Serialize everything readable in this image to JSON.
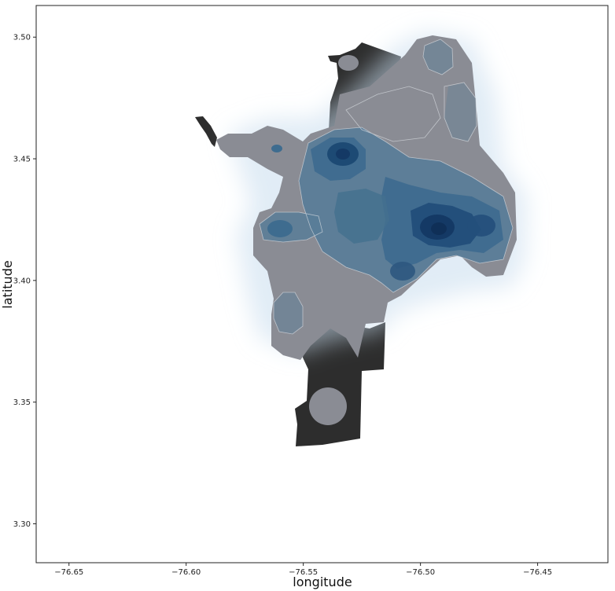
{
  "chart_data": {
    "type": "heatmap",
    "title": "",
    "xlabel": "longitude",
    "ylabel": "latitude",
    "xlim": [
      -76.664,
      -76.42
    ],
    "ylim": [
      3.284,
      3.513
    ],
    "xticks": [
      -76.65,
      -76.6,
      -76.55,
      -76.5,
      -76.45
    ],
    "xtick_labels": [
      "−76.65",
      "−76.60",
      "−76.55",
      "−76.50",
      "−76.45"
    ],
    "yticks": [
      3.3,
      3.35,
      3.4,
      3.45,
      3.5
    ],
    "ytick_labels": [
      "3.30",
      "3.35",
      "3.40",
      "3.45",
      "3.50"
    ],
    "grid": false,
    "legend": "none",
    "colors": {
      "city_fill": "#2d2d2d",
      "density_overlay": "#a7c5e3",
      "density_light": "#8a8c94",
      "density_mid": "#3e6c8f",
      "density_peak": "#143965"
    },
    "density_peaks": [
      {
        "lon": -76.492,
        "lat": 3.421,
        "level": 1.0
      },
      {
        "lon": -76.531,
        "lat": 3.451,
        "level": 0.85
      },
      {
        "lon": -76.557,
        "lat": 3.421,
        "level": 0.55
      },
      {
        "lon": -76.473,
        "lat": 3.422,
        "level": 0.5
      },
      {
        "lon": -76.509,
        "lat": 3.405,
        "level": 0.45
      },
      {
        "lon": -76.504,
        "lat": 3.436,
        "level": 0.4
      },
      {
        "lon": -76.531,
        "lat": 3.433,
        "level": 0.35
      },
      {
        "lon": -76.554,
        "lat": 3.385,
        "level": 0.3
      },
      {
        "lon": -76.494,
        "lat": 3.491,
        "level": 0.3
      },
      {
        "lon": -76.553,
        "lat": 3.343,
        "level": 0.2
      }
    ]
  }
}
